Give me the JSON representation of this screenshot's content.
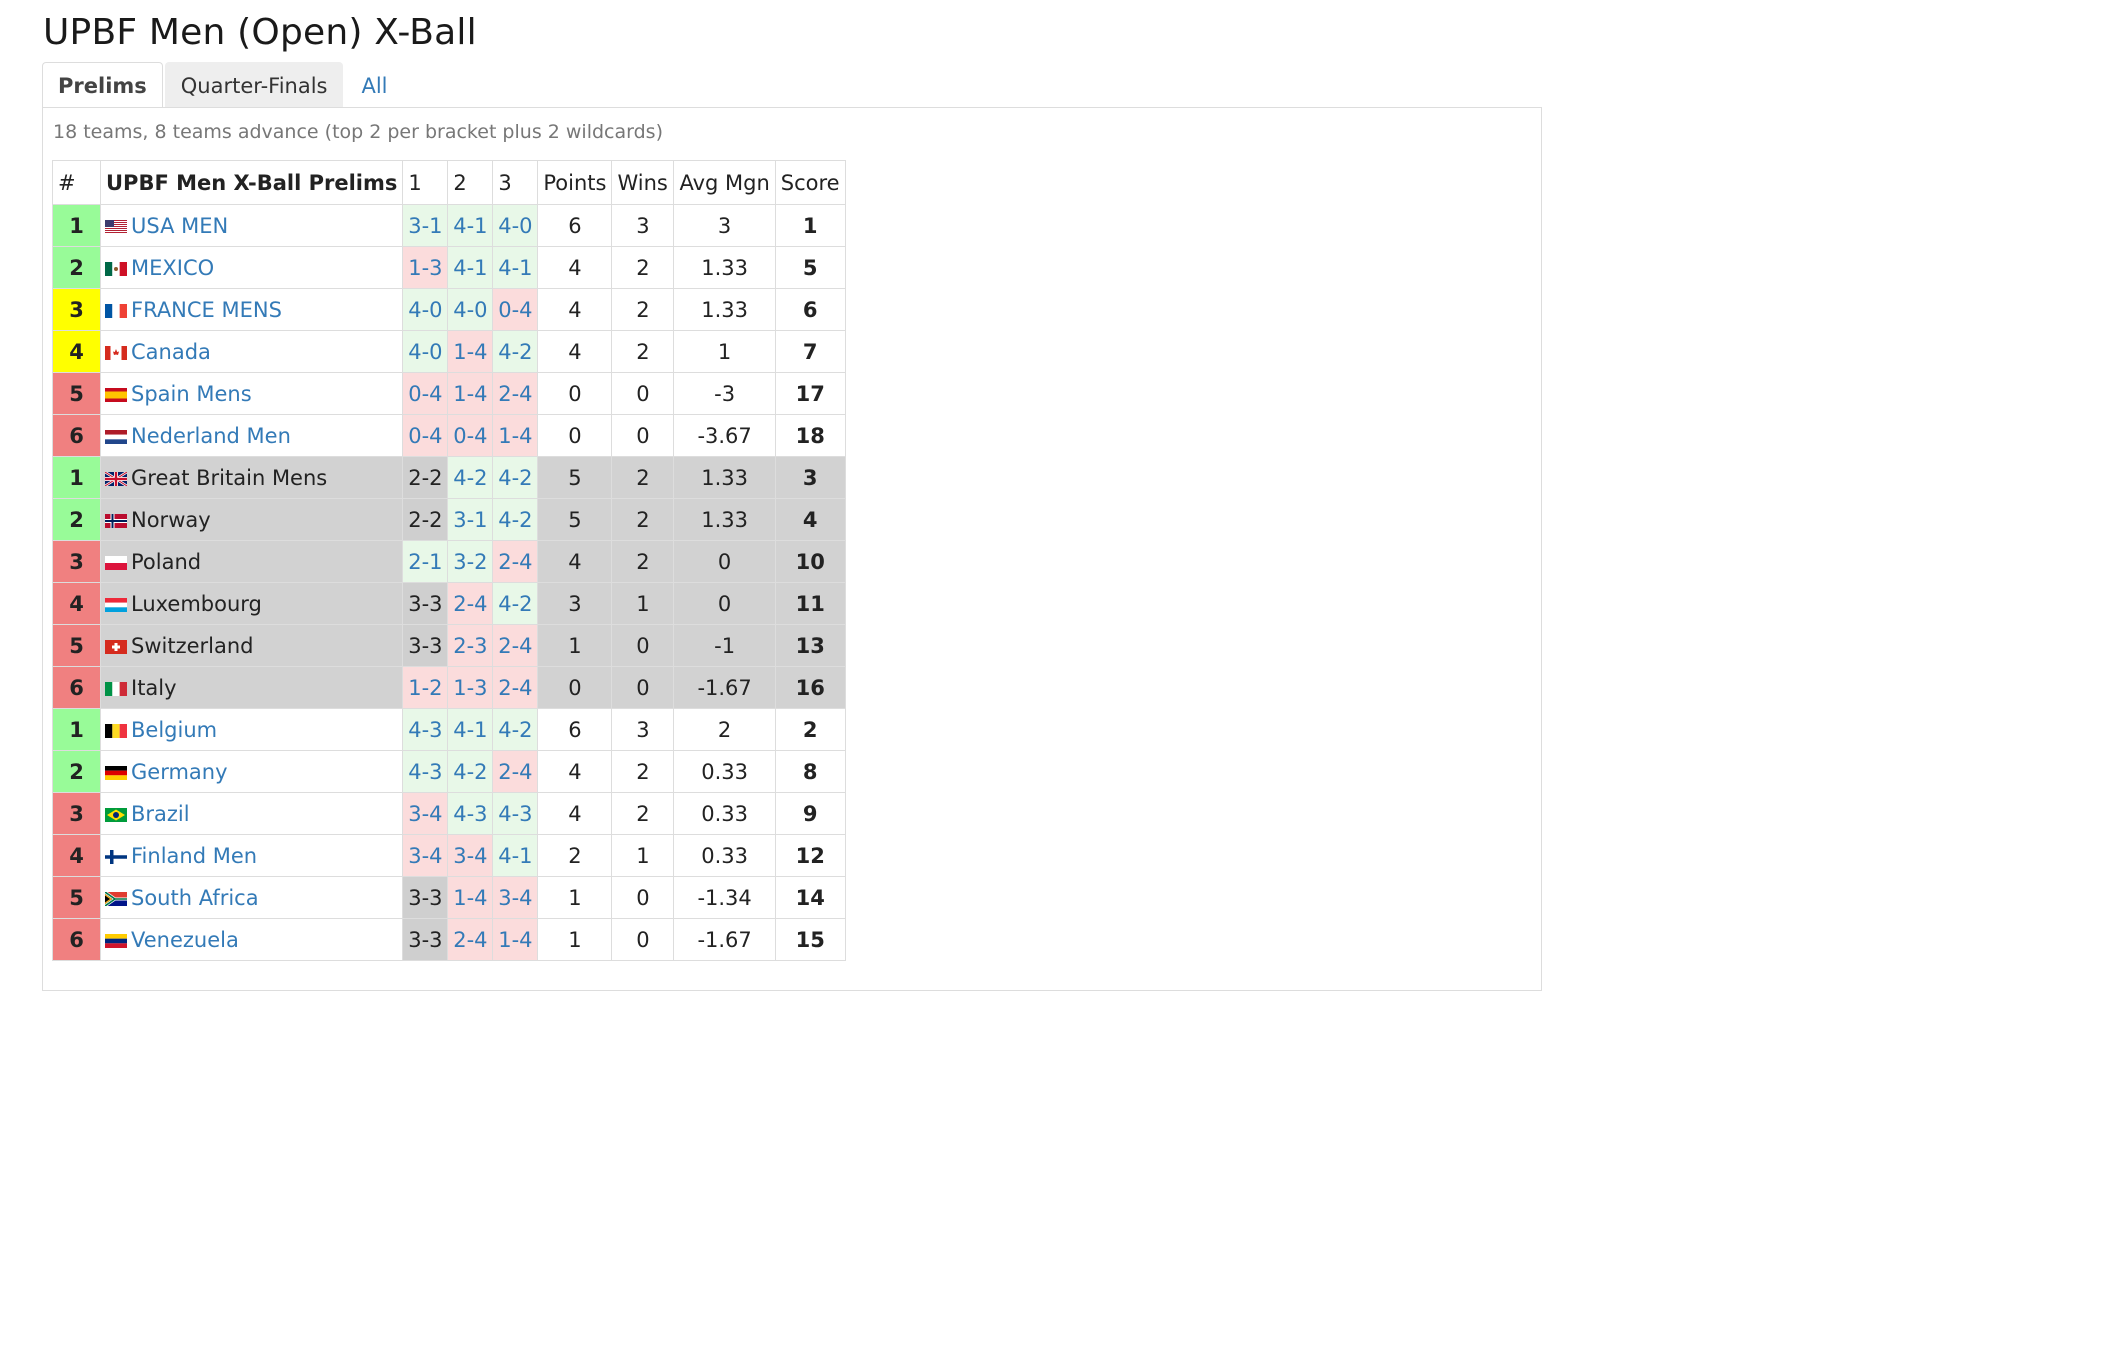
{
  "title": "UPBF Men (Open) X-Ball",
  "tabs": [
    {
      "label": "Prelims",
      "state": "active"
    },
    {
      "label": "Quarter-Finals",
      "state": "inactive"
    },
    {
      "label": "All",
      "state": "link"
    }
  ],
  "description": "18 teams, 8 teams advance (top 2 per bracket plus 2 wildcards)",
  "table": {
    "headers": [
      "#",
      "UPBF Men X-Ball Prelims",
      "1",
      "2",
      "3",
      "Points",
      "Wins",
      "Avg Mgn",
      "Score"
    ],
    "rows": [
      {
        "rank": "1",
        "rank_status": "green",
        "flag": "us",
        "team": "USA MEN",
        "linked": true,
        "games": [
          {
            "score": "3-1",
            "result": "win",
            "linked": true
          },
          {
            "score": "4-1",
            "result": "win",
            "linked": true
          },
          {
            "score": "4-0",
            "result": "win",
            "linked": true
          }
        ],
        "points": "6",
        "wins": "3",
        "avg": "3",
        "score": "1",
        "group": "white"
      },
      {
        "rank": "2",
        "rank_status": "green",
        "flag": "mx",
        "team": "MEXICO",
        "linked": true,
        "games": [
          {
            "score": "1-3",
            "result": "loss",
            "linked": true
          },
          {
            "score": "4-1",
            "result": "win",
            "linked": true
          },
          {
            "score": "4-1",
            "result": "win",
            "linked": true
          }
        ],
        "points": "4",
        "wins": "2",
        "avg": "1.33",
        "score": "5",
        "group": "white"
      },
      {
        "rank": "3",
        "rank_status": "yellow",
        "flag": "fr",
        "team": "FRANCE MENS",
        "linked": true,
        "games": [
          {
            "score": "4-0",
            "result": "win",
            "linked": true
          },
          {
            "score": "4-0",
            "result": "win",
            "linked": true
          },
          {
            "score": "0-4",
            "result": "loss",
            "linked": true
          }
        ],
        "points": "4",
        "wins": "2",
        "avg": "1.33",
        "score": "6",
        "group": "white"
      },
      {
        "rank": "4",
        "rank_status": "yellow",
        "flag": "ca",
        "team": "Canada",
        "linked": true,
        "games": [
          {
            "score": "4-0",
            "result": "win",
            "linked": true
          },
          {
            "score": "1-4",
            "result": "loss",
            "linked": true
          },
          {
            "score": "4-2",
            "result": "win",
            "linked": true
          }
        ],
        "points": "4",
        "wins": "2",
        "avg": "1",
        "score": "7",
        "group": "white"
      },
      {
        "rank": "5",
        "rank_status": "red",
        "flag": "es",
        "team": "Spain Mens",
        "linked": true,
        "games": [
          {
            "score": "0-4",
            "result": "loss",
            "linked": true
          },
          {
            "score": "1-4",
            "result": "loss",
            "linked": true
          },
          {
            "score": "2-4",
            "result": "loss",
            "linked": true
          }
        ],
        "points": "0",
        "wins": "0",
        "avg": "-3",
        "score": "17",
        "group": "white"
      },
      {
        "rank": "6",
        "rank_status": "red",
        "flag": "nl",
        "team": "Nederland Men",
        "linked": true,
        "games": [
          {
            "score": "0-4",
            "result": "loss",
            "linked": true
          },
          {
            "score": "0-4",
            "result": "loss",
            "linked": true
          },
          {
            "score": "1-4",
            "result": "loss",
            "linked": true
          }
        ],
        "points": "0",
        "wins": "0",
        "avg": "-3.67",
        "score": "18",
        "group": "white"
      },
      {
        "rank": "1",
        "rank_status": "green",
        "flag": "gb",
        "team": "Great Britain Mens",
        "linked": false,
        "games": [
          {
            "score": "2-2",
            "result": "draw",
            "linked": false
          },
          {
            "score": "4-2",
            "result": "win",
            "linked": true
          },
          {
            "score": "4-2",
            "result": "win",
            "linked": true
          }
        ],
        "points": "5",
        "wins": "2",
        "avg": "1.33",
        "score": "3",
        "group": "grey"
      },
      {
        "rank": "2",
        "rank_status": "green",
        "flag": "no",
        "team": "Norway",
        "linked": false,
        "games": [
          {
            "score": "2-2",
            "result": "draw",
            "linked": false
          },
          {
            "score": "3-1",
            "result": "win",
            "linked": true
          },
          {
            "score": "4-2",
            "result": "win",
            "linked": true
          }
        ],
        "points": "5",
        "wins": "2",
        "avg": "1.33",
        "score": "4",
        "group": "grey"
      },
      {
        "rank": "3",
        "rank_status": "red",
        "flag": "pl",
        "team": "Poland",
        "linked": false,
        "games": [
          {
            "score": "2-1",
            "result": "win",
            "linked": true
          },
          {
            "score": "3-2",
            "result": "win",
            "linked": true
          },
          {
            "score": "2-4",
            "result": "loss",
            "linked": true
          }
        ],
        "points": "4",
        "wins": "2",
        "avg": "0",
        "score": "10",
        "group": "grey"
      },
      {
        "rank": "4",
        "rank_status": "red",
        "flag": "lu",
        "team": "Luxembourg",
        "linked": false,
        "games": [
          {
            "score": "3-3",
            "result": "draw",
            "linked": false
          },
          {
            "score": "2-4",
            "result": "loss",
            "linked": true
          },
          {
            "score": "4-2",
            "result": "win",
            "linked": true
          }
        ],
        "points": "3",
        "wins": "1",
        "avg": "0",
        "score": "11",
        "group": "grey"
      },
      {
        "rank": "5",
        "rank_status": "red",
        "flag": "ch",
        "team": "Switzerland",
        "linked": false,
        "games": [
          {
            "score": "3-3",
            "result": "draw",
            "linked": false
          },
          {
            "score": "2-3",
            "result": "loss",
            "linked": true
          },
          {
            "score": "2-4",
            "result": "loss",
            "linked": true
          }
        ],
        "points": "1",
        "wins": "0",
        "avg": "-1",
        "score": "13",
        "group": "grey"
      },
      {
        "rank": "6",
        "rank_status": "red",
        "flag": "it",
        "team": "Italy",
        "linked": false,
        "games": [
          {
            "score": "1-2",
            "result": "loss",
            "linked": true
          },
          {
            "score": "1-3",
            "result": "loss",
            "linked": true
          },
          {
            "score": "2-4",
            "result": "loss",
            "linked": true
          }
        ],
        "points": "0",
        "wins": "0",
        "avg": "-1.67",
        "score": "16",
        "group": "grey"
      },
      {
        "rank": "1",
        "rank_status": "green",
        "flag": "be",
        "team": "Belgium",
        "linked": true,
        "games": [
          {
            "score": "4-3",
            "result": "win",
            "linked": true
          },
          {
            "score": "4-1",
            "result": "win",
            "linked": true
          },
          {
            "score": "4-2",
            "result": "win",
            "linked": true
          }
        ],
        "points": "6",
        "wins": "3",
        "avg": "2",
        "score": "2",
        "group": "white"
      },
      {
        "rank": "2",
        "rank_status": "green",
        "flag": "de",
        "team": "Germany",
        "linked": true,
        "games": [
          {
            "score": "4-3",
            "result": "win",
            "linked": true
          },
          {
            "score": "4-2",
            "result": "win",
            "linked": true
          },
          {
            "score": "2-4",
            "result": "loss",
            "linked": true
          }
        ],
        "points": "4",
        "wins": "2",
        "avg": "0.33",
        "score": "8",
        "group": "white"
      },
      {
        "rank": "3",
        "rank_status": "red",
        "flag": "br",
        "team": "Brazil",
        "linked": true,
        "games": [
          {
            "score": "3-4",
            "result": "loss",
            "linked": true
          },
          {
            "score": "4-3",
            "result": "win",
            "linked": true
          },
          {
            "score": "4-3",
            "result": "win",
            "linked": true
          }
        ],
        "points": "4",
        "wins": "2",
        "avg": "0.33",
        "score": "9",
        "group": "white"
      },
      {
        "rank": "4",
        "rank_status": "red",
        "flag": "fi",
        "team": "Finland Men",
        "linked": true,
        "games": [
          {
            "score": "3-4",
            "result": "loss",
            "linked": true
          },
          {
            "score": "3-4",
            "result": "loss",
            "linked": true
          },
          {
            "score": "4-1",
            "result": "win",
            "linked": true
          }
        ],
        "points": "2",
        "wins": "1",
        "avg": "0.33",
        "score": "12",
        "group": "white"
      },
      {
        "rank": "5",
        "rank_status": "red",
        "flag": "za",
        "team": "South Africa",
        "linked": true,
        "games": [
          {
            "score": "3-3",
            "result": "draw",
            "linked": false
          },
          {
            "score": "1-4",
            "result": "loss",
            "linked": true
          },
          {
            "score": "3-4",
            "result": "loss",
            "linked": true
          }
        ],
        "points": "1",
        "wins": "0",
        "avg": "-1.34",
        "score": "14",
        "group": "white"
      },
      {
        "rank": "6",
        "rank_status": "red",
        "flag": "ve",
        "team": "Venezuela",
        "linked": true,
        "games": [
          {
            "score": "3-3",
            "result": "draw",
            "linked": false
          },
          {
            "score": "2-4",
            "result": "loss",
            "linked": true
          },
          {
            "score": "1-4",
            "result": "loss",
            "linked": true
          }
        ],
        "points": "1",
        "wins": "0",
        "avg": "-1.67",
        "score": "15",
        "group": "white"
      }
    ]
  },
  "colors": {
    "link": "#337ab7",
    "rank_green": "#98fb98",
    "rank_yellow": "#ffff00",
    "rank_red": "#f08080",
    "game_win": "#e8f8e8",
    "game_loss": "#fbdcdc",
    "game_draw": "#cfcfcf",
    "group_grey": "#d2d2d2"
  }
}
